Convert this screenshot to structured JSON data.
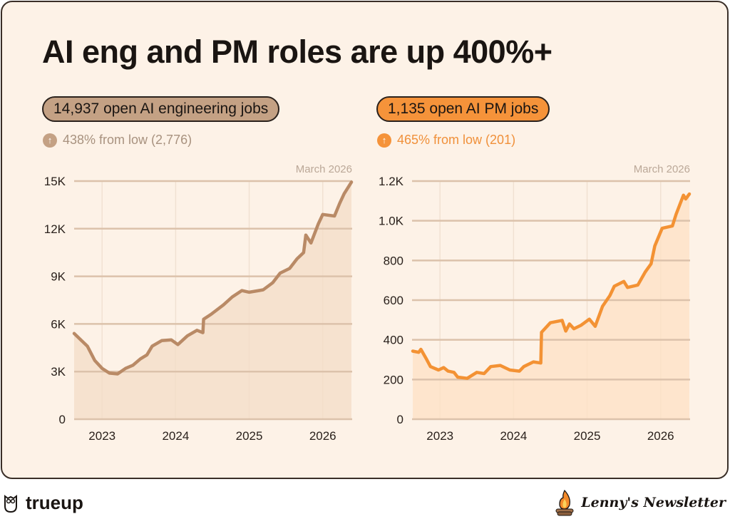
{
  "title": "AI eng and PM roles are up 400%+",
  "colors": {
    "eng_line": "#b98a66",
    "eng_fill": "#f3dcc7",
    "eng_pill": "#c4a184",
    "pm_line": "#f39234",
    "pm_fill": "#fde0c4",
    "pm_pill": "#f5933a",
    "grid": "#dcc2ab",
    "vgrid": "#f1e1d2"
  },
  "left": {
    "pill": "14,937 open AI engineering jobs",
    "change": "438% from low (2,776)",
    "arrow_icon": "arrow-up-circle"
  },
  "right": {
    "pill": "1,135 open AI PM jobs",
    "change": "465% from low (201)",
    "arrow_icon": "arrow-up-circle"
  },
  "footer": {
    "brand": "trueup",
    "newsletter": "Lenny's Newsletter"
  },
  "chart_data": [
    {
      "type": "area",
      "note": "March 2026",
      "xlim": [
        2022.62,
        2026.4
      ],
      "xticks": [
        2023,
        2024,
        2025,
        2026
      ],
      "xtick_labels": [
        "2023",
        "2024",
        "2025",
        "2026"
      ],
      "ylim": [
        0,
        15000
      ],
      "yticks": [
        0,
        3000,
        6000,
        9000,
        12000,
        15000
      ],
      "ytick_labels": [
        "0",
        "3K",
        "6K",
        "9K",
        "12K",
        "15K"
      ],
      "grid": true,
      "series": [
        {
          "x": [
            2022.62,
            2022.8,
            2022.9,
            2023.0,
            2023.1,
            2023.21,
            2023.32,
            2023.42,
            2023.52,
            2023.61,
            2023.68,
            2023.81,
            2023.94,
            2024.03,
            2024.16,
            2024.29,
            2024.37,
            2024.38,
            2024.48,
            2024.65,
            2024.77,
            2024.9,
            2025.0,
            2025.13,
            2025.19,
            2025.32,
            2025.42,
            2025.55,
            2025.65,
            2025.74,
            2025.77,
            2025.84,
            2025.94,
            2026.0,
            2026.16,
            2026.23,
            2026.29,
            2026.39
          ],
          "y": [
            5400,
            4600,
            3700,
            3200,
            2900,
            2850,
            3200,
            3400,
            3800,
            4050,
            4600,
            4950,
            5000,
            4700,
            5250,
            5600,
            5450,
            6300,
            6600,
            7200,
            7700,
            8100,
            8000,
            8100,
            8150,
            8600,
            9200,
            9500,
            10100,
            10500,
            11600,
            11100,
            12300,
            12900,
            12800,
            13600,
            14200,
            14937
          ]
        }
      ]
    },
    {
      "type": "area",
      "note": "March 2026",
      "xlim": [
        2022.62,
        2026.4
      ],
      "xticks": [
        2023,
        2024,
        2025,
        2026
      ],
      "xtick_labels": [
        "2023",
        "2024",
        "2025",
        "2026"
      ],
      "ylim": [
        0,
        1200
      ],
      "yticks": [
        0,
        200,
        400,
        600,
        800,
        1000,
        1200
      ],
      "ytick_labels": [
        "0",
        "200",
        "400",
        "600",
        "800",
        "1.0K",
        "1.2K"
      ],
      "grid": true,
      "series": [
        {
          "x": [
            2022.63,
            2022.71,
            2022.74,
            2022.81,
            2022.87,
            2022.98,
            2023.05,
            2023.11,
            2023.19,
            2023.24,
            2023.37,
            2023.5,
            2023.6,
            2023.69,
            2023.82,
            2023.95,
            2024.08,
            2024.14,
            2024.27,
            2024.37,
            2024.38,
            2024.5,
            2024.66,
            2024.71,
            2024.76,
            2024.82,
            2024.92,
            2025.03,
            2025.11,
            2025.21,
            2025.31,
            2025.37,
            2025.5,
            2025.55,
            2025.69,
            2025.79,
            2025.87,
            2025.92,
            2026.02,
            2026.16,
            2026.21,
            2026.31,
            2026.34,
            2026.39
          ],
          "y": [
            343,
            337,
            352,
            307,
            265,
            248,
            260,
            242,
            236,
            212,
            206,
            236,
            230,
            265,
            271,
            248,
            242,
            265,
            289,
            283,
            438,
            486,
            498,
            444,
            480,
            456,
            474,
            504,
            468,
            569,
            623,
            670,
            694,
            664,
            676,
            742,
            783,
            873,
            962,
            974,
            1033,
            1129,
            1110,
            1135
          ]
        }
      ]
    }
  ]
}
